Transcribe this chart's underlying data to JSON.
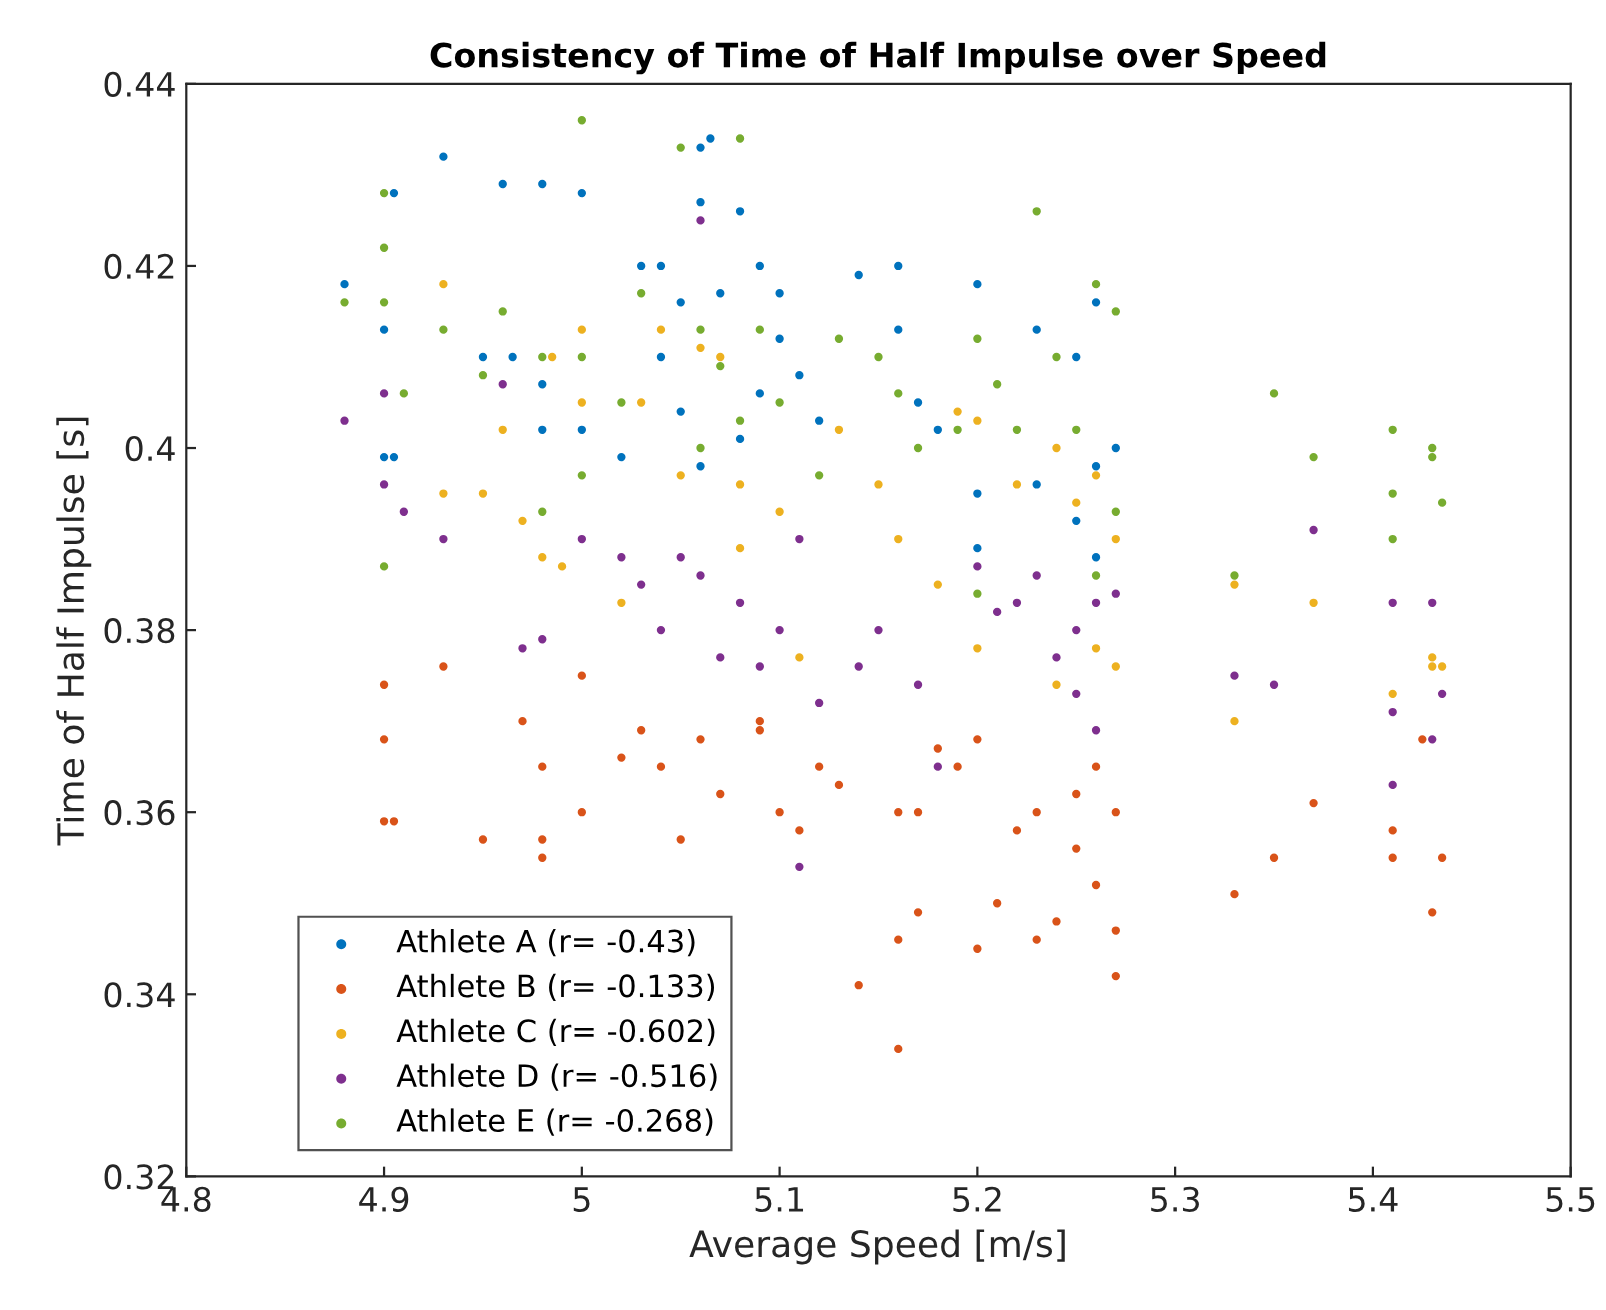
{
  "chart_data": {
    "type": "scatter",
    "title": "Consistency of Time of Half Impulse over Speed",
    "xlabel": "Average Speed [m/s]",
    "ylabel": "Time of Half Impulse [s]",
    "xlim": [
      4.8,
      5.5
    ],
    "ylim": [
      0.32,
      0.44
    ],
    "xticks": [
      4.8,
      4.9,
      5,
      5.1,
      5.2,
      5.3,
      5.4,
      5.5
    ],
    "yticks": [
      0.32,
      0.34,
      0.36,
      0.38,
      0.4,
      0.42,
      0.44
    ],
    "grid": false,
    "legend": "bottom left",
    "marker": "circle",
    "series": [
      {
        "name": "Athlete A (r= -0.43)",
        "color": "#0072bd",
        "x": [
          4.88,
          4.905,
          4.9,
          4.9,
          4.905,
          4.93,
          4.95,
          4.96,
          4.965,
          4.98,
          4.98,
          4.98,
          5.0,
          5.0,
          5.02,
          5.03,
          5.04,
          5.05,
          5.06,
          5.065,
          5.06,
          5.07,
          5.08,
          5.09,
          5.1,
          5.04,
          5.05,
          5.06,
          5.09,
          5.08,
          5.12,
          5.14,
          5.16,
          5.16,
          5.17,
          5.18,
          5.2,
          5.2,
          5.2,
          5.23,
          5.23,
          5.25,
          5.26,
          5.26,
          5.27,
          5.25,
          5.26,
          5.1,
          5.11
        ],
        "values": [
          0.418,
          0.428,
          0.413,
          0.399,
          0.399,
          0.432,
          0.41,
          0.429,
          0.41,
          0.429,
          0.407,
          0.402,
          0.428,
          0.402,
          0.399,
          0.42,
          0.42,
          0.416,
          0.433,
          0.434,
          0.427,
          0.417,
          0.426,
          0.42,
          0.417,
          0.41,
          0.404,
          0.398,
          0.406,
          0.401,
          0.403,
          0.419,
          0.42,
          0.413,
          0.405,
          0.402,
          0.418,
          0.395,
          0.389,
          0.413,
          0.396,
          0.41,
          0.416,
          0.398,
          0.4,
          0.392,
          0.388,
          0.412,
          0.408
        ]
      },
      {
        "name": "Athlete B (r= -0.133)",
        "color": "#d95319",
        "x": [
          4.9,
          4.9,
          4.905,
          4.9,
          4.93,
          4.95,
          4.97,
          4.98,
          4.98,
          4.98,
          5.0,
          5.0,
          5.02,
          5.03,
          5.04,
          5.05,
          5.06,
          5.07,
          5.09,
          5.09,
          5.1,
          5.11,
          5.12,
          5.13,
          5.14,
          5.16,
          5.16,
          5.17,
          5.17,
          5.18,
          5.19,
          5.2,
          5.21,
          5.22,
          5.23,
          5.24,
          5.25,
          5.26,
          5.27,
          5.27,
          5.27,
          5.26,
          5.25,
          5.33,
          5.35,
          5.37,
          5.41,
          5.41,
          5.43,
          5.435,
          5.425,
          5.2,
          5.16,
          5.23
        ],
        "values": [
          0.368,
          0.359,
          0.359,
          0.374,
          0.376,
          0.357,
          0.37,
          0.357,
          0.355,
          0.365,
          0.36,
          0.375,
          0.366,
          0.369,
          0.365,
          0.357,
          0.368,
          0.362,
          0.37,
          0.369,
          0.36,
          0.358,
          0.365,
          0.363,
          0.341,
          0.334,
          0.346,
          0.349,
          0.36,
          0.367,
          0.365,
          0.345,
          0.35,
          0.358,
          0.346,
          0.348,
          0.356,
          0.352,
          0.347,
          0.342,
          0.36,
          0.365,
          0.362,
          0.351,
          0.355,
          0.361,
          0.358,
          0.355,
          0.349,
          0.355,
          0.368,
          0.368,
          0.36,
          0.36
        ]
      },
      {
        "name": "Athlete C (r= -0.602)",
        "color": "#edb120",
        "x": [
          4.93,
          4.93,
          4.95,
          4.96,
          4.97,
          4.985,
          4.98,
          4.99,
          5.0,
          5.0,
          5.02,
          5.03,
          5.04,
          5.05,
          5.06,
          5.07,
          5.08,
          5.08,
          5.1,
          5.11,
          5.13,
          5.15,
          5.16,
          5.18,
          5.19,
          5.2,
          5.22,
          5.24,
          5.25,
          5.26,
          5.26,
          5.27,
          5.27,
          5.33,
          5.33,
          5.37,
          5.41,
          5.43,
          5.43,
          5.435,
          5.2,
          5.24
        ],
        "values": [
          0.418,
          0.395,
          0.395,
          0.402,
          0.392,
          0.41,
          0.388,
          0.387,
          0.413,
          0.405,
          0.383,
          0.405,
          0.413,
          0.397,
          0.411,
          0.41,
          0.396,
          0.389,
          0.393,
          0.377,
          0.402,
          0.396,
          0.39,
          0.385,
          0.404,
          0.403,
          0.396,
          0.4,
          0.394,
          0.397,
          0.378,
          0.39,
          0.376,
          0.37,
          0.385,
          0.383,
          0.373,
          0.376,
          0.377,
          0.376,
          0.378,
          0.374
        ]
      },
      {
        "name": "Athlete D (r= -0.516)",
        "color": "#7e2f8e",
        "x": [
          4.88,
          4.9,
          4.9,
          4.91,
          4.93,
          4.96,
          4.97,
          4.98,
          5.0,
          5.02,
          5.03,
          5.04,
          5.05,
          5.06,
          5.07,
          5.08,
          5.09,
          5.1,
          5.11,
          5.12,
          5.14,
          5.15,
          5.17,
          5.18,
          5.2,
          5.21,
          5.22,
          5.23,
          5.24,
          5.25,
          5.26,
          5.27,
          5.25,
          5.26,
          5.33,
          5.35,
          5.37,
          5.41,
          5.41,
          5.41,
          5.43,
          5.435,
          5.43,
          5.11,
          5.06
        ],
        "values": [
          0.403,
          0.406,
          0.396,
          0.393,
          0.39,
          0.407,
          0.378,
          0.379,
          0.39,
          0.388,
          0.385,
          0.38,
          0.388,
          0.386,
          0.377,
          0.383,
          0.376,
          0.38,
          0.39,
          0.372,
          0.376,
          0.38,
          0.374,
          0.365,
          0.387,
          0.382,
          0.383,
          0.386,
          0.377,
          0.38,
          0.383,
          0.384,
          0.373,
          0.369,
          0.375,
          0.374,
          0.391,
          0.383,
          0.371,
          0.363,
          0.383,
          0.373,
          0.368,
          0.354,
          0.425
        ]
      },
      {
        "name": "Athlete E (r= -0.268)",
        "color": "#77ac30",
        "x": [
          4.88,
          4.9,
          4.9,
          4.9,
          4.91,
          4.9,
          4.93,
          4.95,
          4.96,
          4.98,
          4.98,
          5.0,
          5.0,
          5.0,
          5.02,
          5.03,
          5.05,
          5.06,
          5.08,
          5.07,
          5.08,
          5.09,
          5.1,
          5.12,
          5.13,
          5.15,
          5.16,
          5.17,
          5.19,
          5.2,
          5.21,
          5.22,
          5.23,
          5.24,
          5.25,
          5.26,
          5.27,
          5.27,
          5.26,
          5.33,
          5.35,
          5.37,
          5.41,
          5.41,
          5.41,
          5.43,
          5.435,
          5.43,
          5.2,
          5.06
        ],
        "values": [
          0.416,
          0.428,
          0.422,
          0.416,
          0.406,
          0.387,
          0.413,
          0.408,
          0.415,
          0.41,
          0.393,
          0.436,
          0.41,
          0.397,
          0.405,
          0.417,
          0.433,
          0.413,
          0.434,
          0.409,
          0.403,
          0.413,
          0.405,
          0.397,
          0.412,
          0.41,
          0.406,
          0.4,
          0.402,
          0.412,
          0.407,
          0.402,
          0.426,
          0.41,
          0.402,
          0.418,
          0.415,
          0.393,
          0.386,
          0.386,
          0.406,
          0.399,
          0.402,
          0.395,
          0.39,
          0.399,
          0.394,
          0.4,
          0.384,
          0.4
        ]
      }
    ]
  }
}
